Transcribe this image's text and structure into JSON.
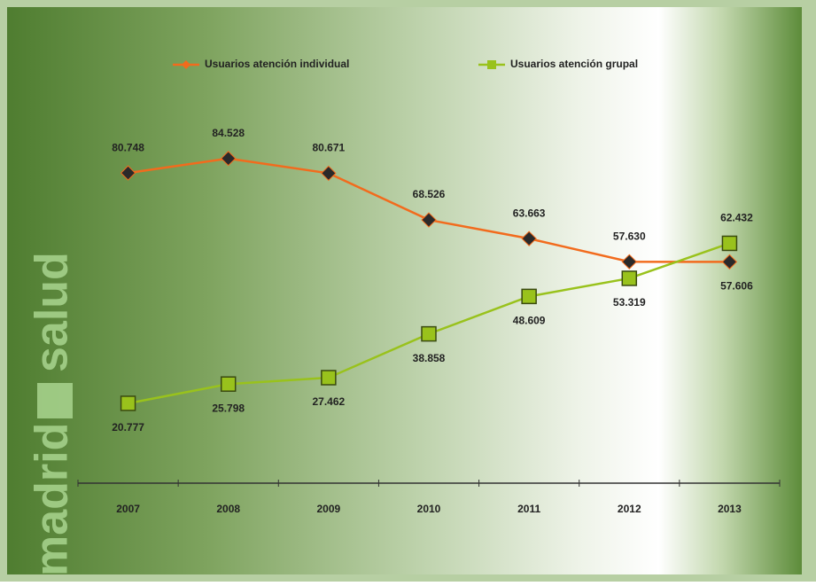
{
  "chart_data": {
    "type": "line",
    "watermark": [
      "madrid",
      "salud"
    ],
    "categories": [
      "2007",
      "2008",
      "2009",
      "2010",
      "2011",
      "2012",
      "2013"
    ],
    "series": [
      {
        "name": "Usuarios atención individual",
        "color": "#f26b1d",
        "marker": "diamond",
        "values": [
          80748,
          84528,
          80671,
          68526,
          63663,
          57630,
          57606
        ],
        "value_labels": [
          "80.748",
          "84.528",
          "80.671",
          "68.526",
          "63.663",
          "57.630",
          "57.606"
        ]
      },
      {
        "name": "Usuarios atención grupal",
        "color": "#99c21c",
        "marker": "square",
        "values": [
          20777,
          25798,
          27462,
          38858,
          48609,
          53319,
          62432
        ],
        "value_labels": [
          "20.777",
          "25.798",
          "27.462",
          "38.858",
          "48.609",
          "53.319",
          "62.432"
        ]
      }
    ],
    "ylim": [
      0,
      120000
    ],
    "legend": "top"
  }
}
